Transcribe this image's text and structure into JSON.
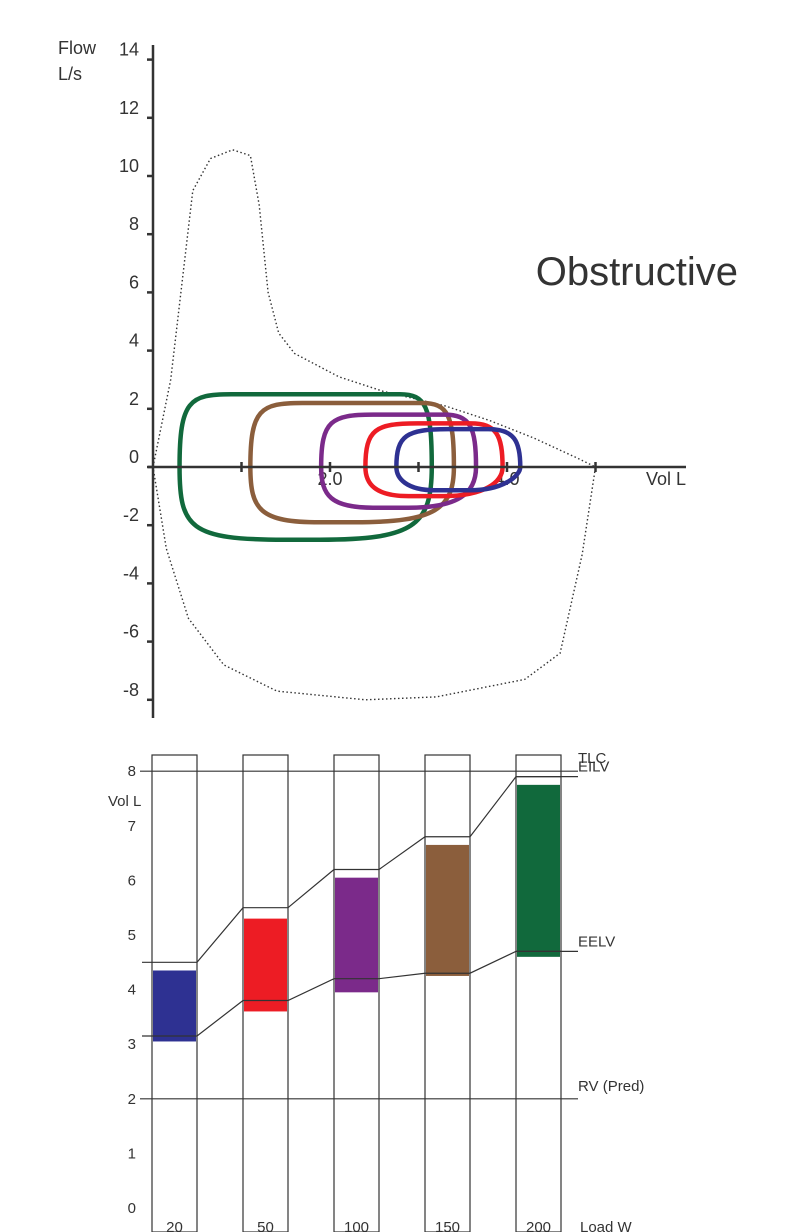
{
  "chart_data": [
    {
      "type": "line",
      "title": "Obstructive",
      "ylabel": "Flow",
      "ylabel_unit": "L/s",
      "xlabel": "Vol L",
      "ylim": [
        -8,
        14
      ],
      "xlim": [
        0,
        6
      ],
      "yticks": [
        14,
        12,
        10,
        8,
        6,
        4,
        2,
        0,
        -2,
        -4,
        -6,
        -8
      ],
      "xtick_labels": [
        {
          "x": 2,
          "label": "2.0"
        },
        {
          "x": 4,
          "label": "4.0"
        }
      ],
      "xticks_unlabeled": [
        1,
        3,
        5
      ],
      "colors": {
        "navy": "#2e3192",
        "red": "#ed1c24",
        "purple": "#7b2a8a",
        "brown": "#8b5e3c",
        "green": "#11693c",
        "envelope": "#333333"
      },
      "envelope": {
        "name": "maximal flow-volume envelope",
        "style": "dotted",
        "points": [
          [
            0,
            0
          ],
          [
            0.2,
            3
          ],
          [
            0.45,
            9.5
          ],
          [
            0.65,
            10.6
          ],
          [
            0.9,
            10.9
          ],
          [
            1.1,
            10.7
          ],
          [
            1.2,
            9
          ],
          [
            1.3,
            6
          ],
          [
            1.42,
            4.6
          ],
          [
            1.6,
            3.9
          ],
          [
            2.1,
            3.1
          ],
          [
            2.6,
            2.6
          ],
          [
            3.3,
            2.1
          ],
          [
            3.8,
            1.6
          ],
          [
            4.3,
            1.0
          ],
          [
            4.8,
            0.3
          ],
          [
            5.0,
            0
          ],
          [
            4.85,
            -3
          ],
          [
            4.6,
            -6.4
          ],
          [
            4.2,
            -7.3
          ],
          [
            3.2,
            -7.9
          ],
          [
            2.4,
            -8.0
          ],
          [
            1.4,
            -7.7
          ],
          [
            0.8,
            -6.8
          ],
          [
            0.4,
            -5.2
          ],
          [
            0.15,
            -2.8
          ],
          [
            0,
            0
          ]
        ]
      },
      "series": [
        {
          "color": "#11693c",
          "loop": {
            "vol_min": 0.3,
            "vol_max": 3.15,
            "flow_max": 2.5,
            "flow_min": -2.5,
            "peak_vol": 1.6
          }
        },
        {
          "color": "#8b5e3c",
          "loop": {
            "vol_min": 1.1,
            "vol_max": 3.4,
            "flow_max": 2.2,
            "flow_min": -1.9,
            "peak_vol": 2.0
          }
        },
        {
          "color": "#7b2a8a",
          "loop": {
            "vol_min": 1.9,
            "vol_max": 3.65,
            "flow_max": 1.8,
            "flow_min": -1.4,
            "peak_vol": 2.6
          }
        },
        {
          "color": "#ed1c24",
          "loop": {
            "vol_min": 2.4,
            "vol_max": 3.95,
            "flow_max": 1.5,
            "flow_min": -1.0,
            "peak_vol": 3.0
          }
        },
        {
          "color": "#2e3192",
          "loop": {
            "vol_min": 2.75,
            "vol_max": 4.15,
            "flow_max": 1.3,
            "flow_min": -0.8,
            "peak_vol": 3.3
          }
        }
      ]
    },
    {
      "type": "bar",
      "ylabel": "Vol L",
      "xlabel": "Load W",
      "ylim": [
        0,
        8
      ],
      "yticks": [
        0,
        1,
        2,
        3,
        4,
        5,
        6,
        7,
        8
      ],
      "categories": [
        "20",
        "50",
        "100",
        "150",
        "200"
      ],
      "eelv": [
        3.15,
        3.8,
        4.2,
        4.3,
        4.7
      ],
      "eilv": [
        4.5,
        5.5,
        6.2,
        6.8,
        7.9
      ],
      "bar_bottom": [
        3.05,
        3.6,
        3.95,
        4.25,
        4.6
      ],
      "bar_top": [
        4.35,
        5.3,
        6.05,
        6.65,
        7.75
      ],
      "bar_colors": [
        "#2e3192",
        "#ed1c24",
        "#7b2a8a",
        "#8b5e3c",
        "#11693c"
      ],
      "reference_lines": [
        {
          "label": "TLC",
          "value": 8.0
        },
        {
          "label": "EILV",
          "value": 7.9
        },
        {
          "label": "EELV",
          "value": 4.7
        },
        {
          "label": "RV (Pred)",
          "value": 2.0
        }
      ]
    }
  ]
}
